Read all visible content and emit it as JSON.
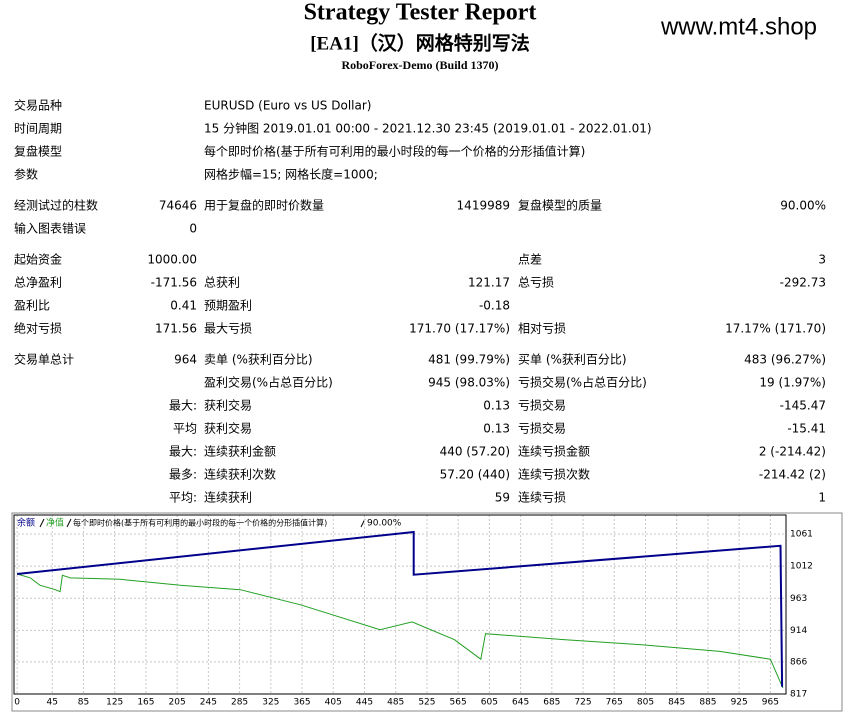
{
  "header": {
    "title": "Strategy Tester Report",
    "subtitle": "[EA1]（汉）网格特别写法",
    "build": "RoboForex-Demo (Build 1370)",
    "watermark": "www.mt4.shop"
  },
  "info": [
    [
      "交易品种",
      "EURUSD (Euro vs US Dollar)"
    ],
    [
      "时间周期",
      "15 分钟图 2019.01.01 00:00 - 2021.12.30 23:45 (2019.01.01 - 2022.01.01)"
    ],
    [
      "复盘模型",
      "每个即时价格(基于所有可利用的最小时段的每一个价格的分形插值计算)"
    ],
    [
      "参数",
      "网格步幅=15; 网格长度=1000;"
    ]
  ],
  "stats": [
    [
      "经测试过的柱数",
      "74646",
      "用于复盘的即时价数量",
      "1419989",
      "复盘模型的质量",
      "90.00%"
    ],
    [
      "输入图表错误",
      "0",
      null,
      null,
      null,
      null
    ],
    [
      "起始资金",
      "1000.00",
      null,
      null,
      "点差",
      "3"
    ],
    [
      "总净盈利",
      "-171.56",
      "总获利",
      "121.17",
      "总亏损",
      "-292.73"
    ],
    [
      "盈利比",
      "0.41",
      "预期盈利",
      "-0.18",
      null,
      null
    ],
    [
      "绝对亏损",
      "171.56",
      "最大亏损",
      "171.70 (17.17%)",
      "相对亏损",
      "17.17% (171.70)"
    ],
    [
      "交易单总计",
      "964",
      "卖单 (%获利百分比)",
      "481 (99.79%)",
      "买单 (%获利百分比)",
      "483 (96.27%)"
    ],
    [
      null,
      null,
      "盈利交易(%占总百分比)",
      "945 (98.03%)",
      "亏损交易(%占总百分比)",
      "19 (1.97%)"
    ],
    [
      null,
      "最大:",
      "获利交易",
      "0.13",
      "亏损交易",
      "-145.47"
    ],
    [
      null,
      "平均",
      "获利交易",
      "0.13",
      "亏损交易",
      "-15.41"
    ],
    [
      null,
      "最大:",
      "连续获利金额",
      "440 (57.20)",
      "连续亏损金额",
      "2 (-214.42)"
    ],
    [
      null,
      "最多:",
      "连续获利次数",
      "57.20 (440)",
      "连续亏损次数",
      "-214.42 (2)"
    ],
    [
      null,
      "平均:",
      "连续获利",
      "59",
      "连续亏损",
      "1"
    ]
  ],
  "chart_data": {
    "type": "line",
    "legend_note": "每个即时价格(基于所有可利用的最小时段的每一个价格的分形插值计算)",
    "quality": "90.00%",
    "xlim": [
      -4,
      985
    ],
    "ylim": [
      817,
      1090
    ],
    "xticks": [
      0,
      45,
      85,
      125,
      165,
      205,
      245,
      285,
      325,
      365,
      405,
      445,
      485,
      525,
      565,
      605,
      645,
      685,
      725,
      765,
      805,
      845,
      885,
      925,
      965
    ],
    "yticks": [
      817,
      866,
      914,
      963,
      1012,
      1061
    ],
    "grid": true,
    "series": [
      {
        "name": "余额",
        "color": "#00008b",
        "x": [
          0,
          508,
          508,
          978,
          980
        ],
        "values": [
          1000,
          1064,
          999,
          1043,
          828
        ]
      },
      {
        "name": "净值",
        "color": "#22a022",
        "x": [
          0,
          17,
          29,
          49,
          55,
          58,
          68,
          132,
          209,
          286,
          363,
          465,
          506,
          560,
          594,
          600,
          700,
          800,
          900,
          965,
          981
        ],
        "values": [
          1000,
          994,
          983,
          976,
          973,
          998,
          994,
          992,
          983,
          976,
          953,
          915,
          927,
          900,
          870,
          909,
          900,
          892,
          882,
          870,
          826
        ]
      }
    ]
  }
}
